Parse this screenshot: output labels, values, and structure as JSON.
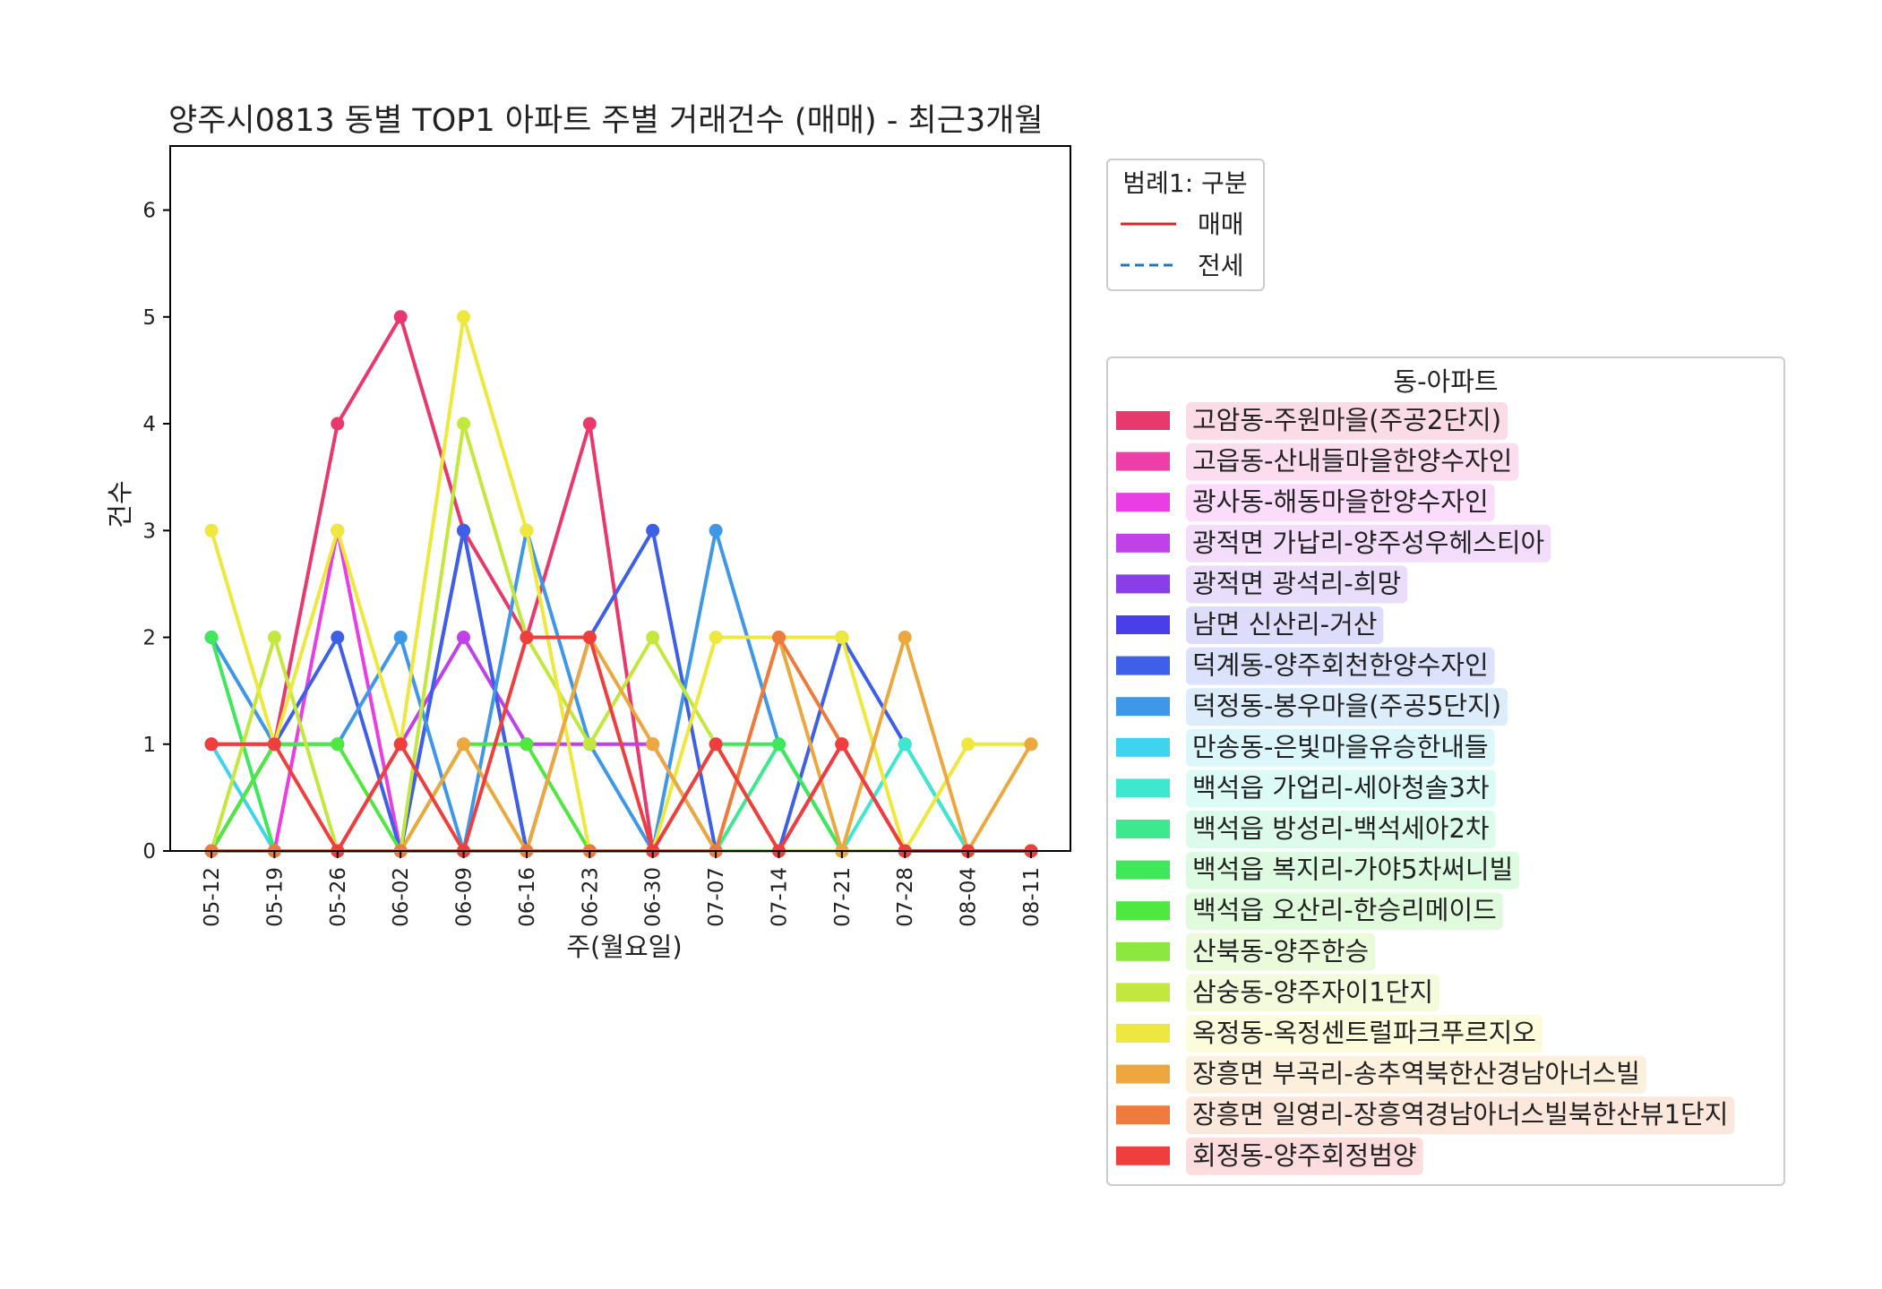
{
  "chart_data": {
    "type": "line",
    "title": "양주시0813 동별 TOP1 아파트 주별 거래건수 (매매) - 최근3개월",
    "xlabel": "주(월요일)",
    "ylabel": "건수",
    "ylim": [
      0,
      6.6
    ],
    "yticks": [
      0,
      1,
      2,
      3,
      4,
      5,
      6
    ],
    "grid": false,
    "categories": [
      "05-12",
      "05-19",
      "05-26",
      "06-02",
      "06-09",
      "06-16",
      "06-23",
      "06-30",
      "07-07",
      "07-14",
      "07-21",
      "07-28",
      "08-04",
      "08-11"
    ],
    "legend1": {
      "title": "범례1: 구분",
      "placement": "upper-right-outside",
      "entries": [
        {
          "label": "매매",
          "style": "solid",
          "color": "#d62728"
        },
        {
          "label": "전세",
          "style": "dashed",
          "color": "#1f77b4"
        }
      ]
    },
    "legend2": {
      "title": "동-아파트",
      "placement": "right-outside"
    },
    "series": [
      {
        "name": "고암동-주원마을(주공2단지)",
        "color": "#e8396d",
        "values": [
          1,
          1,
          4,
          5,
          3,
          2,
          4,
          0,
          0,
          0,
          0,
          0,
          0,
          0
        ]
      },
      {
        "name": "고읍동-산내들마을한양수자인",
        "color": "#ee3fa8",
        "values": [
          0,
          0,
          0,
          0,
          0,
          0,
          0,
          0,
          0,
          0,
          0,
          0,
          0,
          0
        ]
      },
      {
        "name": "광사동-해동마을한양수자인",
        "color": "#e83ee3",
        "values": [
          0,
          0,
          3,
          0,
          0,
          0,
          0,
          0,
          0,
          0,
          0,
          0,
          0,
          0
        ]
      },
      {
        "name": "광적면 가납리-양주성우헤스티아",
        "color": "#bf42e8",
        "values": [
          0,
          0,
          0,
          1,
          2,
          1,
          1,
          1,
          0,
          0,
          1,
          0,
          0,
          0
        ]
      },
      {
        "name": "광적면 광석리-희망",
        "color": "#8a3ee8",
        "values": [
          0,
          0,
          0,
          0,
          0,
          0,
          0,
          0,
          0,
          0,
          0,
          0,
          0,
          0
        ]
      },
      {
        "name": "남면 신산리-거산",
        "color": "#4a3ee8",
        "values": [
          0,
          0,
          0,
          0,
          3,
          0,
          0,
          0,
          0,
          0,
          0,
          0,
          0,
          0
        ]
      },
      {
        "name": "덕계동-양주회천한양수자인",
        "color": "#3e5fe8",
        "values": [
          0,
          1,
          2,
          0,
          3,
          0,
          2,
          3,
          0,
          0,
          2,
          1,
          0,
          0
        ]
      },
      {
        "name": "덕정동-봉우마을(주공5단지)",
        "color": "#3f97e8",
        "values": [
          2,
          1,
          1,
          2,
          0,
          3,
          1,
          0,
          3,
          1,
          0,
          0,
          0,
          0
        ]
      },
      {
        "name": "만송동-은빛마을유승한내들",
        "color": "#3ed3ee",
        "values": [
          1,
          0,
          0,
          0,
          0,
          0,
          0,
          0,
          0,
          0,
          0,
          0,
          0,
          0
        ]
      },
      {
        "name": "백석읍 가업리-세아청솔3차",
        "color": "#3ee8d0",
        "values": [
          0,
          0,
          0,
          0,
          0,
          0,
          0,
          0,
          0,
          0,
          0,
          1,
          0,
          0
        ]
      },
      {
        "name": "백석읍 방성리-백석세아2차",
        "color": "#3ee88e",
        "values": [
          0,
          0,
          0,
          0,
          0,
          0,
          0,
          0,
          0,
          1,
          0,
          0,
          0,
          0
        ]
      },
      {
        "name": "백석읍 복지리-가야5차써니빌",
        "color": "#3ee85a",
        "values": [
          2,
          0,
          0,
          0,
          0,
          0,
          0,
          0,
          1,
          1,
          0,
          0,
          0,
          0
        ]
      },
      {
        "name": "백석읍 오산리-한승리메이드",
        "color": "#4ee83e",
        "values": [
          0,
          1,
          1,
          0,
          1,
          1,
          0,
          0,
          0,
          0,
          0,
          0,
          0,
          0
        ]
      },
      {
        "name": "산북동-양주한승",
        "color": "#8ae83e",
        "values": [
          0,
          0,
          0,
          0,
          0,
          0,
          0,
          0,
          0,
          0,
          0,
          0,
          0,
          0
        ]
      },
      {
        "name": "삼숭동-양주자이1단지",
        "color": "#c2e83e",
        "values": [
          0,
          2,
          0,
          0,
          4,
          2,
          1,
          2,
          1,
          0,
          0,
          0,
          0,
          0
        ]
      },
      {
        "name": "옥정동-옥정센트럴파크푸르지오",
        "color": "#eee83e",
        "values": [
          3,
          1,
          3,
          1,
          5,
          3,
          0,
          0,
          2,
          2,
          2,
          0,
          1,
          1
        ]
      },
      {
        "name": "장흥면 부곡리-송추역북한산경남아너스빌",
        "color": "#eca83e",
        "values": [
          0,
          0,
          0,
          0,
          1,
          0,
          2,
          1,
          0,
          2,
          0,
          2,
          0,
          1
        ]
      },
      {
        "name": "장흥면 일영리-장흥역경남아너스빌북한산뷰1단지",
        "color": "#ee7a3e",
        "values": [
          0,
          0,
          0,
          0,
          0,
          0,
          0,
          0,
          0,
          2,
          1,
          0,
          0,
          0
        ]
      },
      {
        "name": "회정동-양주회정범양",
        "color": "#ee3e3e",
        "values": [
          1,
          1,
          0,
          1,
          0,
          2,
          2,
          0,
          1,
          0,
          1,
          0,
          0,
          0
        ]
      }
    ]
  }
}
